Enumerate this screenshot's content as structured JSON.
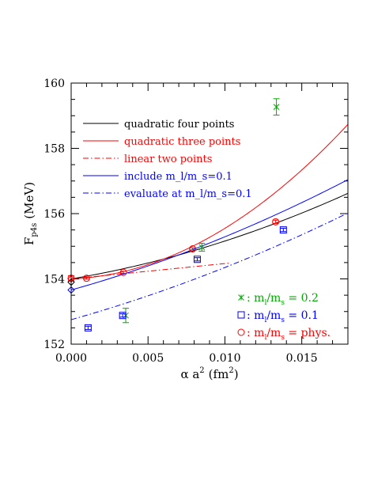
{
  "chart_data": {
    "type": "scatter",
    "xlabel_text": "α a",
    "xlabel_sup": "2",
    "xlabel_unit_pre": "(fm",
    "xlabel_unit_sup": "2",
    "xlabel_unit_post": ")",
    "ylabel_main": "F",
    "ylabel_sub": "p4s",
    "ylabel_unit": "(MeV)",
    "xlim": [
      0.0,
      0.018
    ],
    "ylim": [
      152,
      160
    ],
    "x_ticks": [
      0.0,
      0.005,
      0.01,
      0.015
    ],
    "x_tick_labels": [
      "0.000",
      "0.005",
      "0.010",
      "0.015"
    ],
    "y_ticks": [
      152,
      154,
      156,
      158,
      160
    ],
    "y_tick_labels": [
      "152",
      "154",
      "156",
      "158",
      "160"
    ],
    "colors": {
      "black": "#000000",
      "red": "#ff0000",
      "blue": "#0000ff",
      "green": "#00aa00"
    },
    "fits": [
      {
        "name": "quadratic four points",
        "color": "#000000",
        "dash": "",
        "a": 154.0,
        "b": 79.0,
        "c": 3700.0,
        "xmax": 0.018
      },
      {
        "name": "quadratic three points",
        "color": "#ff0000",
        "dash": "",
        "a": 154.0,
        "b": 20.0,
        "c": 13500.0,
        "xmax": 0.018
      },
      {
        "name": "linear two points",
        "color": "#ff0000",
        "dash": "7,3,1.5,3",
        "a": 154.0,
        "b": 47.0,
        "c": 0.0,
        "xmax": 0.0103
      },
      {
        "name": "include m_l/m_s=0.1",
        "color": "#0000ff",
        "dash": "",
        "a": 153.66,
        "b": 132.0,
        "c": 3100.0,
        "xmax": 0.018
      },
      {
        "name": "evaluate at  m_l/m_s=0.1",
        "color": "#0000ff",
        "dash": "7,3,1.5,3",
        "a": 152.75,
        "b": 133.0,
        "c": 2700.0,
        "xmax": 0.018
      }
    ],
    "legend_lines": [
      "quadratic four points",
      "quadratic three points",
      "linear two points",
      "include m_l/m_s=0.1",
      "evaluate at  m_l/m_s=0.1"
    ],
    "series": [
      {
        "name": "m_l/m_s = 0.2",
        "marker": "star",
        "color": "#00aa00",
        "points": [
          {
            "x": 0.00355,
            "y": 152.88,
            "err": 0.22
          },
          {
            "x": 0.0085,
            "y": 154.97,
            "err": 0.12
          },
          {
            "x": 0.01335,
            "y": 159.27,
            "err": 0.25
          }
        ]
      },
      {
        "name": "m_l/m_s = 0.1",
        "marker": "square",
        "color": "#0000ff",
        "points": [
          {
            "x": 0.0011,
            "y": 152.5,
            "err": 0.05
          },
          {
            "x": 0.00335,
            "y": 152.88,
            "err": 0.05
          },
          {
            "x": 0.0082,
            "y": 154.6,
            "err": 0.05
          },
          {
            "x": 0.0138,
            "y": 155.5,
            "err": 0.05
          }
        ]
      },
      {
        "name": "m_l/m_s = phys.",
        "marker": "circle",
        "color": "#ff0000",
        "points": [
          {
            "x": 0.0,
            "y": 154.02,
            "err": 0.08
          },
          {
            "x": 0.001,
            "y": 154.02,
            "err": 0.03
          },
          {
            "x": 0.0034,
            "y": 154.2,
            "err": 0.03
          },
          {
            "x": 0.0079,
            "y": 154.92,
            "err": 0.03
          },
          {
            "x": 0.0133,
            "y": 155.75,
            "err": 0.05
          }
        ]
      }
    ],
    "extrapolated": [
      {
        "name": "quadratic four points",
        "marker": "diamond",
        "color": "#000000",
        "x": 0.0,
        "y": 153.9
      },
      {
        "name": "quadratic three points",
        "marker": "diamond",
        "color": "#ff0000",
        "x": 0.0,
        "y": 154.0
      },
      {
        "name": "include m_l/m_s=0.1",
        "marker": "diamond",
        "color": "#0000ff",
        "x": 0.0,
        "y": 153.66
      }
    ],
    "marker_legend": [
      {
        "marker": "star",
        "color": "#00aa00",
        "prefix": "m",
        "sub1": "l",
        "mid": "/m",
        "sub2": "s",
        "suffix": " = 0.2"
      },
      {
        "marker": "square",
        "color": "#0000ff",
        "prefix": "m",
        "sub1": "l",
        "mid": "/m",
        "sub2": "s",
        "suffix": " = 0.1"
      },
      {
        "marker": "circle",
        "color": "#ff0000",
        "prefix": "m",
        "sub1": "l",
        "mid": "/m",
        "sub2": "s",
        "suffix": " = phys."
      }
    ]
  }
}
